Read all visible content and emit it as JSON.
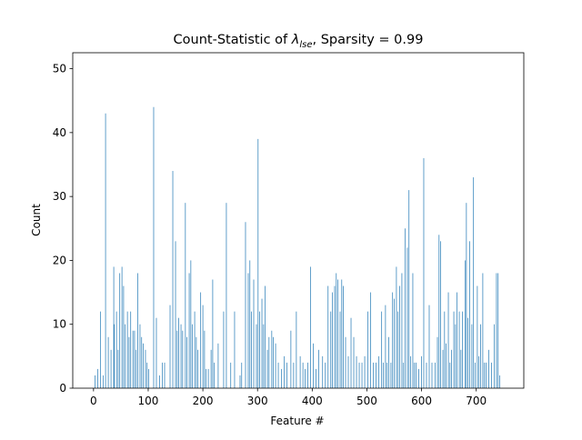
{
  "chart_data": {
    "type": "bar",
    "title": [
      "Count-Statistic of ",
      "λ",
      "lse",
      ", Sparsity = 0.99"
    ],
    "xlabel": "Feature #",
    "ylabel": "Count",
    "color": "#1f77b4",
    "x": [
      3,
      8,
      13,
      18,
      22,
      27,
      32,
      37,
      38,
      42,
      45,
      48,
      52,
      55,
      58,
      62,
      65,
      68,
      72,
      75,
      78,
      81,
      85,
      88,
      91,
      95,
      98,
      101,
      110,
      115,
      121,
      126,
      130,
      140,
      145,
      150,
      153,
      156,
      160,
      163,
      168,
      171,
      175,
      178,
      181,
      185,
      188,
      191,
      196,
      200,
      203,
      206,
      210,
      215,
      218,
      221,
      228,
      238,
      243,
      251,
      258,
      268,
      271,
      278,
      283,
      286,
      289,
      293,
      298,
      301,
      304,
      308,
      311,
      314,
      318,
      321,
      326,
      329,
      333,
      338,
      344,
      349,
      354,
      361,
      366,
      371,
      378,
      383,
      387,
      392,
      397,
      402,
      407,
      412,
      419,
      424,
      429,
      434,
      437,
      441,
      444,
      447,
      451,
      454,
      457,
      461,
      466,
      471,
      476,
      481,
      486,
      491,
      496,
      502,
      507,
      512,
      517,
      522,
      527,
      530,
      534,
      537,
      540,
      544,
      547,
      550,
      554,
      557,
      560,
      564,
      567,
      570,
      574,
      577,
      580,
      584,
      587,
      590,
      595,
      600,
      604,
      609,
      614,
      619,
      625,
      629,
      632,
      635,
      639,
      642,
      645,
      649,
      652,
      655,
      659,
      662,
      665,
      669,
      672,
      675,
      680,
      682,
      685,
      688,
      692,
      695,
      698,
      702,
      705,
      708,
      712,
      715,
      718,
      723,
      728,
      733,
      737,
      740,
      743
    ],
    "values": [
      2,
      3,
      12,
      2,
      43,
      8,
      6,
      19,
      10,
      12,
      6,
      18,
      19,
      16,
      10,
      12,
      8,
      12,
      9,
      9,
      6,
      18,
      10,
      8,
      7,
      6,
      4,
      3,
      44,
      11,
      2,
      4,
      4,
      13,
      34,
      23,
      9,
      11,
      10,
      9,
      29,
      8,
      18,
      20,
      10,
      12,
      8,
      6,
      15,
      13,
      9,
      3,
      3,
      6,
      17,
      4,
      7,
      12,
      29,
      4,
      12,
      2,
      4,
      26,
      18,
      20,
      12,
      17,
      10,
      39,
      12,
      14,
      10,
      16,
      6,
      8,
      9,
      8,
      7,
      4,
      3,
      5,
      4,
      9,
      4,
      12,
      5,
      4,
      3,
      4,
      19,
      7,
      3,
      6,
      5,
      4,
      16,
      12,
      15,
      16,
      18,
      17,
      12,
      17,
      16,
      8,
      5,
      11,
      8,
      5,
      4,
      4,
      5,
      12,
      15,
      4,
      4,
      5,
      12,
      4,
      13,
      4,
      8,
      4,
      15,
      14,
      19,
      12,
      16,
      18,
      4,
      25,
      22,
      31,
      5,
      18,
      4,
      4,
      3,
      5,
      36,
      4,
      13,
      4,
      4,
      8,
      24,
      23,
      6,
      12,
      7,
      15,
      4,
      6,
      12,
      10,
      15,
      12,
      6,
      12,
      20,
      29,
      11,
      23,
      10,
      33,
      4,
      16,
      5,
      10,
      18,
      4,
      4,
      6,
      4,
      10,
      18,
      18,
      2
    ],
    "xlim": [
      -38,
      787
    ],
    "ylim": [
      0,
      52.5
    ],
    "xticks": [
      0,
      100,
      200,
      300,
      400,
      500,
      600,
      700
    ],
    "yticks": [
      0,
      10,
      20,
      30,
      40,
      50
    ]
  }
}
